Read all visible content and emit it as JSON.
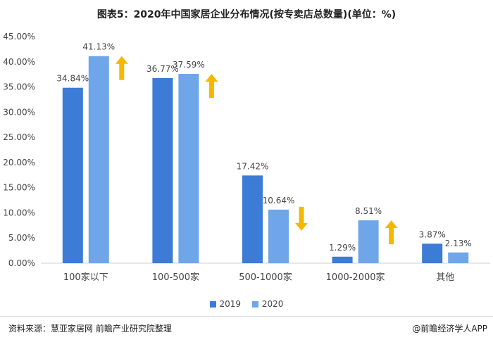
{
  "title": "图表5：2020年中国家居企业分布情况(按专卖店总数量)(单位：%)",
  "source": "资料来源：慧亚家居网 前瞻产业研究院整理",
  "brand": "@前瞻经济学人APP",
  "colors": {
    "series_2019": "#3C7BD6",
    "series_2020": "#6FA6EA",
    "arrow": "#F5B800",
    "axis": "#d0d0d0",
    "text": "#444444"
  },
  "chart_data": {
    "type": "bar",
    "categories": [
      "100家以下",
      "100-500家",
      "500-1000家",
      "1000-2000家",
      "其他"
    ],
    "series": [
      {
        "name": "2019",
        "values": [
          34.84,
          36.77,
          17.42,
          1.29,
          3.87
        ],
        "labels": [
          "34.84%",
          "36.77%",
          "17.42%",
          "1.29%",
          "3.87%"
        ]
      },
      {
        "name": "2020",
        "values": [
          41.13,
          37.59,
          10.64,
          8.51,
          2.13
        ],
        "labels": [
          "41.13%",
          "37.59%",
          "10.64%",
          "8.51%",
          "2.13%"
        ]
      }
    ],
    "trend_arrows": [
      "up",
      "up",
      "down",
      "up",
      null
    ],
    "yticks": [
      "0.00%",
      "5.00%",
      "10.00%",
      "15.00%",
      "20.00%",
      "25.00%",
      "30.00%",
      "35.00%",
      "40.00%",
      "45.00%"
    ],
    "ylim": [
      0,
      45
    ],
    "legend_position": "bottom",
    "grid": false
  }
}
